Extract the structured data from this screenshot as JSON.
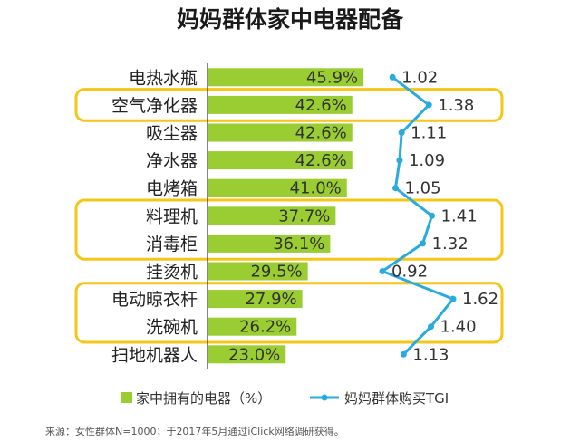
{
  "chart_data": {
    "type": "bar",
    "title": "妈妈群体家中电器配备",
    "categories": [
      "电热水瓶",
      "空气净化器",
      "吸尘器",
      "净水器",
      "电烤箱",
      "料理机",
      "消毒柜",
      "挂烫机",
      "电动晾衣杆",
      "洗碗机",
      "扫地机器人"
    ],
    "value_labels": [
      "45.9%",
      "42.6%",
      "42.6%",
      "42.6%",
      "41.0%",
      "37.7%",
      "36.1%",
      "29.5%",
      "27.9%",
      "26.2%",
      "23.0%"
    ],
    "tgi_labels": [
      "1.02",
      "1.38",
      "1.11",
      "1.09",
      "1.05",
      "1.41",
      "1.32",
      "0.92",
      "1.62",
      "1.40",
      "1.13"
    ],
    "series": [
      {
        "name": "家中拥有的电器（%）",
        "type": "bar",
        "values": [
          45.9,
          42.6,
          42.6,
          42.6,
          41.0,
          37.7,
          36.1,
          29.5,
          27.9,
          26.2,
          23.0
        ]
      },
      {
        "name": "妈妈群体购买TGI",
        "type": "line",
        "values": [
          1.02,
          1.38,
          1.11,
          1.09,
          1.05,
          1.41,
          1.32,
          0.92,
          1.62,
          1.4,
          1.13
        ]
      }
    ],
    "highlight_groups": [
      [
        "空气净化器"
      ],
      [
        "料理机",
        "消毒柜"
      ],
      [
        "电动晾衣杆",
        "洗碗机"
      ]
    ],
    "orientation": "horizontal",
    "legend_position": "bottom",
    "colors": {
      "bar": "#9ACD32",
      "line": "#29ABE2",
      "highlight": "#F5C518",
      "axis": "#333333"
    },
    "grid": false
  },
  "source_note": "来源：女性群体N=1000；于2017年5月通过iClick网络调研获得。"
}
